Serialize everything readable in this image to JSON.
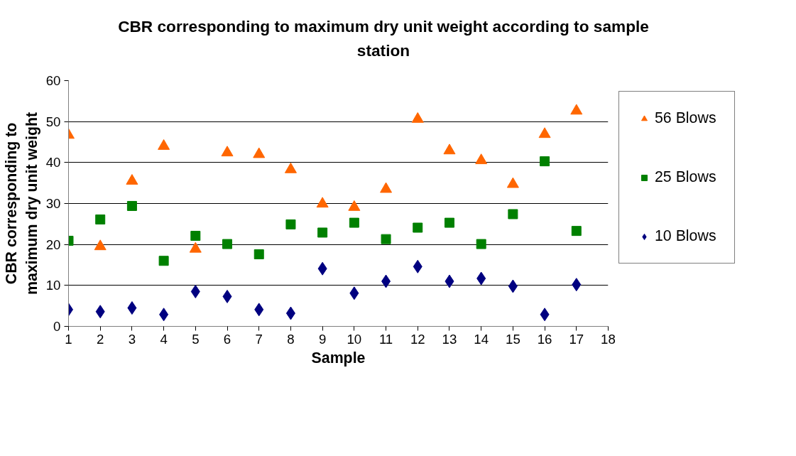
{
  "chart_data": {
    "type": "scatter",
    "title": "CBR corresponding to maximum dry unit weight according to sample station",
    "xlabel": "Sample",
    "ylabel": "CBR corresponding to maximum dry unit weight",
    "x": [
      1,
      2,
      3,
      4,
      5,
      6,
      7,
      8,
      9,
      10,
      11,
      12,
      13,
      14,
      15,
      16,
      17
    ],
    "series": [
      {
        "name": "56 Blows",
        "color": "#ff6600",
        "marker": "triangle",
        "values": [
          46.7,
          19.5,
          35.5,
          44,
          18.9,
          42.4,
          42,
          38.3,
          29.9,
          29.1,
          33.5,
          50.6,
          42.9,
          40.5,
          34.7,
          46.9,
          52.6
        ]
      },
      {
        "name": "25 Blows",
        "color": "#008000",
        "marker": "square",
        "values": [
          20.9,
          26.1,
          29.4,
          16,
          22.1,
          20.1,
          17.6,
          24.9,
          22.9,
          25.3,
          21.3,
          24.1,
          25.3,
          20.1,
          27.4,
          40.3,
          23.3
        ]
      },
      {
        "name": "10 Blows",
        "color": "#000080",
        "marker": "diamond",
        "values": [
          4.1,
          3.6,
          4.5,
          2.9,
          8.5,
          7.3,
          4.1,
          3.2,
          14.1,
          8.1,
          11,
          14.6,
          11,
          11.7,
          9.8,
          2.9,
          10.2
        ]
      }
    ],
    "xlim": [
      1,
      18
    ],
    "xticks": [
      1,
      2,
      3,
      4,
      5,
      6,
      7,
      8,
      9,
      10,
      11,
      12,
      13,
      14,
      15,
      16,
      17,
      18
    ],
    "ylim": [
      0,
      60
    ],
    "yticks": [
      0,
      10,
      20,
      30,
      40,
      50,
      60
    ],
    "grid": "y",
    "legend": "right"
  }
}
